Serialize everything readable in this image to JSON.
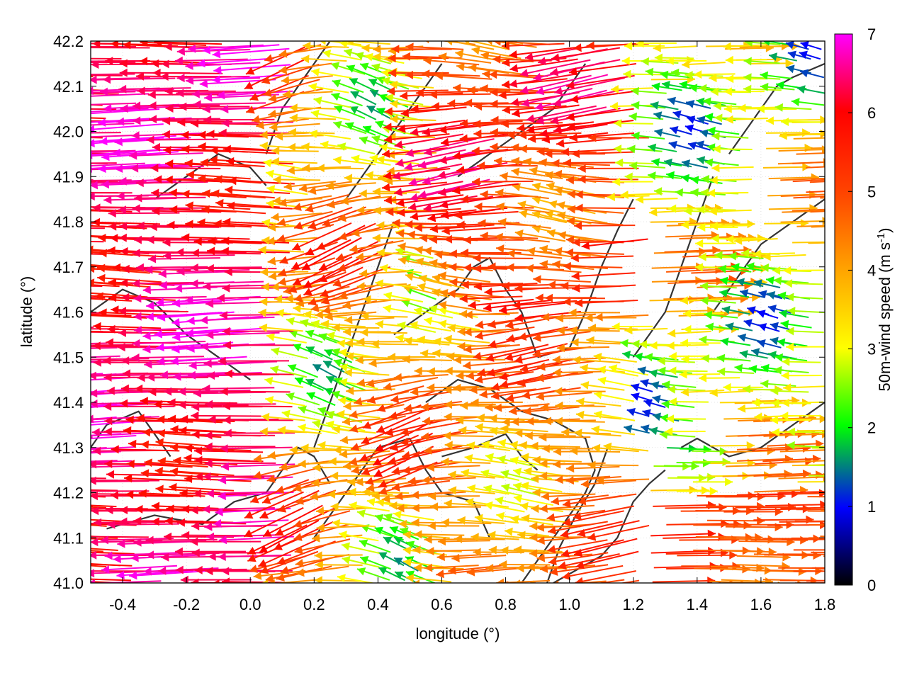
{
  "chart_data": {
    "type": "vector-field",
    "xlabel": "longitude (°)",
    "ylabel": "latitude (°)",
    "colorbar_label": "50m-wind speed (m s-1)",
    "colorbar_label_parts": {
      "main": "50m-wind speed (m s",
      "sup": "-1",
      "close": ")"
    },
    "xlim": [
      -0.5,
      1.8
    ],
    "ylim": [
      41.0,
      42.2
    ],
    "x_ticks": [
      -0.4,
      -0.2,
      0.0,
      0.2,
      0.4,
      0.6,
      0.8,
      1.0,
      1.2,
      1.4,
      1.6,
      1.8
    ],
    "x_tick_labels": [
      "-0.4",
      "-0.2",
      "0.0",
      "0.2",
      "0.4",
      "0.6",
      "0.8",
      "1.0",
      "1.2",
      "1.4",
      "1.6",
      "1.8"
    ],
    "y_ticks": [
      41.0,
      41.1,
      41.2,
      41.3,
      41.4,
      41.5,
      41.6,
      41.7,
      41.8,
      41.9,
      42.0,
      42.1,
      42.2
    ],
    "y_tick_labels": [
      "41.0",
      "41.1",
      "41.2",
      "41.3",
      "41.4",
      "41.5",
      "41.6",
      "41.7",
      "41.8",
      "41.9",
      "42.0",
      "42.1",
      "42.2"
    ],
    "colorbar": {
      "range": [
        0,
        7
      ],
      "ticks": [
        0,
        1,
        2,
        3,
        4,
        5,
        6,
        7
      ],
      "tick_labels": [
        "0",
        "1",
        "2",
        "3",
        "4",
        "5",
        "6",
        "7"
      ],
      "colors": [
        "#000000",
        "#0000ff",
        "#00ff00",
        "#ffff00",
        "#ffa500",
        "#ff0000",
        "#ff00ff"
      ]
    },
    "grid": true,
    "contours": [
      {
        "x": [
          -0.45,
          -0.3,
          -0.15,
          -0.05,
          0.05,
          0.1,
          0.15,
          0.2,
          0.25
        ],
        "y": [
          41.12,
          41.15,
          41.13,
          41.18,
          41.2,
          41.25,
          41.3,
          41.28,
          41.22
        ]
      },
      {
        "x": [
          0.2,
          0.3,
          0.4,
          0.5,
          0.55,
          0.6,
          0.7,
          0.75
        ],
        "y": [
          41.1,
          41.2,
          41.3,
          41.32,
          41.25,
          41.2,
          41.18,
          41.1
        ]
      },
      {
        "x": [
          0.55,
          0.65,
          0.75,
          0.85,
          0.95,
          1.05,
          1.08
        ],
        "y": [
          41.4,
          41.45,
          41.43,
          41.38,
          41.36,
          41.32,
          41.25
        ]
      },
      {
        "x": [
          1.08,
          1.05,
          1.0,
          0.95,
          0.9,
          0.85
        ],
        "y": [
          41.25,
          41.2,
          41.15,
          41.1,
          41.05,
          41.0
        ]
      },
      {
        "x": [
          1.12,
          1.08,
          1.02,
          0.97,
          0.93
        ],
        "y": [
          41.3,
          41.22,
          41.15,
          41.08,
          41.0
        ]
      },
      {
        "x": [
          0.95,
          1.05,
          1.1,
          1.15,
          1.2,
          1.25,
          1.3
        ],
        "y": [
          41.0,
          41.04,
          41.06,
          41.1,
          41.18,
          41.22,
          41.25
        ]
      },
      {
        "x": [
          0.45,
          0.55,
          0.65,
          0.7,
          0.75,
          0.8,
          0.85,
          0.9
        ],
        "y": [
          41.55,
          41.6,
          41.65,
          41.7,
          41.72,
          41.65,
          41.6,
          41.5
        ]
      },
      {
        "x": [
          0.9,
          1.0,
          1.05,
          1.1,
          1.15,
          1.2
        ],
        "y": [
          41.5,
          41.52,
          41.6,
          41.7,
          41.78,
          41.85
        ]
      },
      {
        "x": [
          0.2,
          0.25,
          0.3,
          0.35,
          0.4,
          0.45
        ],
        "y": [
          41.3,
          41.4,
          41.5,
          41.6,
          41.7,
          41.8
        ]
      },
      {
        "x": [
          0.3,
          0.35,
          0.4,
          0.45,
          0.5,
          0.55,
          0.6
        ],
        "y": [
          41.85,
          41.9,
          41.95,
          42.0,
          42.05,
          42.1,
          42.15
        ]
      },
      {
        "x": [
          0.65,
          0.75,
          0.85,
          0.95,
          1.0,
          1.05
        ],
        "y": [
          41.9,
          41.95,
          42.0,
          42.05,
          42.1,
          42.15
        ]
      },
      {
        "x": [
          1.2,
          1.25,
          1.3,
          1.35,
          1.4,
          1.45
        ],
        "y": [
          41.5,
          41.55,
          41.6,
          41.7,
          41.8,
          41.9
        ]
      },
      {
        "x": [
          1.35,
          1.4,
          1.5,
          1.6,
          1.7,
          1.8
        ],
        "y": [
          41.3,
          41.32,
          41.28,
          41.3,
          41.35,
          41.4
        ]
      },
      {
        "x": [
          1.45,
          1.5,
          1.55,
          1.6,
          1.7,
          1.8
        ],
        "y": [
          41.6,
          41.65,
          41.7,
          41.75,
          41.8,
          41.85
        ]
      },
      {
        "x": [
          1.5,
          1.55,
          1.6,
          1.65,
          1.7,
          1.8
        ],
        "y": [
          41.95,
          42.0,
          42.05,
          42.1,
          42.12,
          42.15
        ]
      },
      {
        "x": [
          -0.5,
          -0.4,
          -0.3,
          -0.2,
          -0.1,
          0.0
        ],
        "y": [
          41.6,
          41.65,
          41.62,
          41.55,
          41.5,
          41.45
        ]
      },
      {
        "x": [
          -0.3,
          -0.2,
          -0.1,
          0.0,
          0.05
        ],
        "y": [
          41.85,
          41.9,
          41.95,
          41.92,
          41.88
        ]
      },
      {
        "x": [
          0.05,
          0.1,
          0.15,
          0.2,
          0.25
        ],
        "y": [
          41.95,
          42.05,
          42.1,
          42.15,
          42.2
        ]
      },
      {
        "x": [
          -0.5,
          -0.45,
          -0.35,
          -0.3,
          -0.25
        ],
        "y": [
          41.3,
          41.35,
          41.38,
          41.33,
          41.28
        ]
      },
      {
        "x": [
          0.6,
          0.7,
          0.8,
          0.85,
          0.9
        ],
        "y": [
          41.28,
          41.3,
          41.33,
          41.28,
          41.25
        ]
      }
    ]
  }
}
